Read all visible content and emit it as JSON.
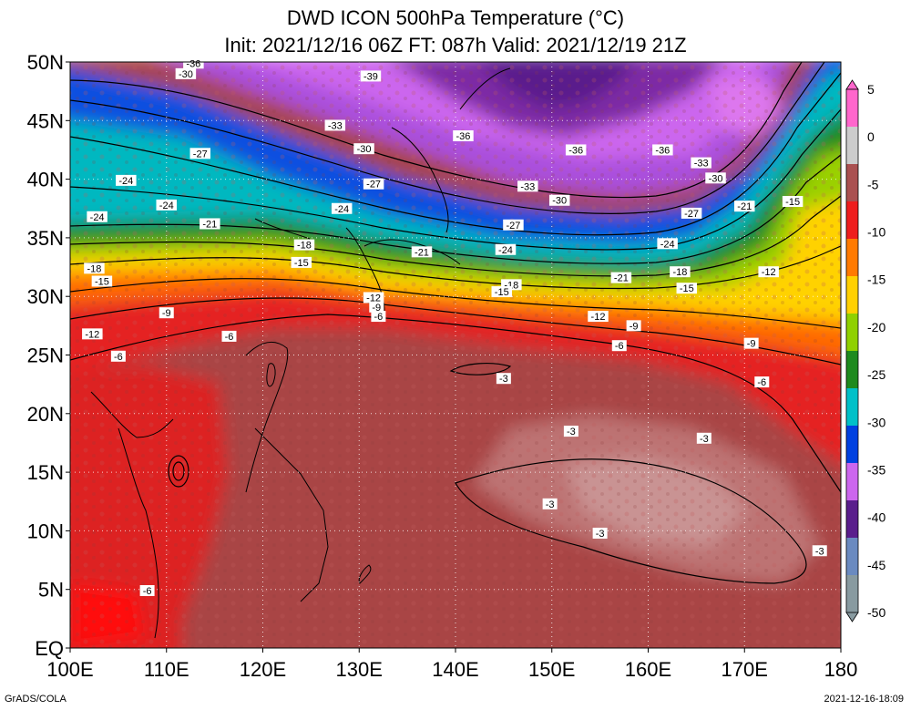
{
  "title": {
    "line1": "DWD ICON 500hPa Temperature (°C)",
    "line2": "Init: 2021/12/16 06Z  FT: 087h  Valid: 2021/12/19 21Z"
  },
  "axes": {
    "lat_labels": [
      "50N",
      "45N",
      "40N",
      "35N",
      "30N",
      "25N",
      "20N",
      "15N",
      "10N",
      "5N",
      "EQ"
    ],
    "lat_values": [
      50,
      45,
      40,
      35,
      30,
      25,
      20,
      15,
      10,
      5,
      0
    ],
    "lon_labels": [
      "100E",
      "110E",
      "120E",
      "130E",
      "140E",
      "150E",
      "160E",
      "170E",
      "180"
    ],
    "lon_values": [
      100,
      110,
      120,
      130,
      140,
      150,
      160,
      170,
      180
    ],
    "lon_range": [
      100,
      180
    ],
    "lat_range": [
      0,
      50
    ],
    "grid": "dotted"
  },
  "colorbar": {
    "labels": [
      "5",
      "0",
      "-5",
      "-10",
      "-15",
      "-20",
      "-25",
      "-30",
      "-35",
      "-40",
      "-45",
      "-50"
    ],
    "values": [
      5,
      0,
      -5,
      -10,
      -15,
      -20,
      -25,
      -30,
      -35,
      -40,
      -45,
      -50
    ],
    "colors": [
      "#ff66cc",
      "#cccccc",
      "#aa5050",
      "#ee1d1d",
      "#ff7a00",
      "#ffd000",
      "#8fd000",
      "#1e8a1e",
      "#00c0c8",
      "#0040e0",
      "#cc66ee",
      "#5a1e8c",
      "#6a8ac0",
      "#889aa0"
    ]
  },
  "contour_labels": [
    {
      "text": "-36",
      "lon": 112.8,
      "lat": 49.9
    },
    {
      "text": "-30",
      "lon": 112.0,
      "lat": 49.0
    },
    {
      "text": "-39",
      "lon": 131.2,
      "lat": 48.8
    },
    {
      "text": "-33",
      "lon": 127.5,
      "lat": 44.6
    },
    {
      "text": "-36",
      "lon": 140.8,
      "lat": 43.7
    },
    {
      "text": "-30",
      "lon": 130.5,
      "lat": 42.6
    },
    {
      "text": "-27",
      "lon": 113.5,
      "lat": 42.2
    },
    {
      "text": "-36",
      "lon": 152.5,
      "lat": 42.5
    },
    {
      "text": "-36",
      "lon": 161.5,
      "lat": 42.5
    },
    {
      "text": "-33",
      "lon": 165.5,
      "lat": 41.4
    },
    {
      "text": "-30",
      "lon": 167.0,
      "lat": 40.1
    },
    {
      "text": "-24",
      "lon": 105.8,
      "lat": 39.9
    },
    {
      "text": "-27",
      "lon": 131.5,
      "lat": 39.6
    },
    {
      "text": "-33",
      "lon": 147.5,
      "lat": 39.4
    },
    {
      "text": "-30",
      "lon": 150.8,
      "lat": 38.2
    },
    {
      "text": "-24",
      "lon": 110.0,
      "lat": 37.8
    },
    {
      "text": "-24",
      "lon": 128.2,
      "lat": 37.5
    },
    {
      "text": "-21",
      "lon": 170.0,
      "lat": 37.7
    },
    {
      "text": "-15",
      "lon": 175.0,
      "lat": 38.1
    },
    {
      "text": "-27",
      "lon": 164.5,
      "lat": 37.1
    },
    {
      "text": "-24",
      "lon": 102.8,
      "lat": 36.8
    },
    {
      "text": "-21",
      "lon": 114.5,
      "lat": 36.2
    },
    {
      "text": "-27",
      "lon": 146.0,
      "lat": 36.1
    },
    {
      "text": "-18",
      "lon": 124.3,
      "lat": 34.4
    },
    {
      "text": "-21",
      "lon": 136.5,
      "lat": 33.8
    },
    {
      "text": "-24",
      "lon": 145.2,
      "lat": 34.0
    },
    {
      "text": "-24",
      "lon": 162.0,
      "lat": 34.5
    },
    {
      "text": "-15",
      "lon": 124.0,
      "lat": 32.9
    },
    {
      "text": "-18",
      "lon": 102.5,
      "lat": 32.4
    },
    {
      "text": "-18",
      "lon": 163.3,
      "lat": 32.1
    },
    {
      "text": "-12",
      "lon": 172.5,
      "lat": 32.1
    },
    {
      "text": "-15",
      "lon": 103.3,
      "lat": 31.3
    },
    {
      "text": "-21",
      "lon": 157.2,
      "lat": 31.6
    },
    {
      "text": "-18",
      "lon": 145.8,
      "lat": 31.0
    },
    {
      "text": "-15",
      "lon": 144.8,
      "lat": 30.4
    },
    {
      "text": "-15",
      "lon": 164.0,
      "lat": 30.7
    },
    {
      "text": "-12",
      "lon": 131.5,
      "lat": 29.9
    },
    {
      "text": "-9",
      "lon": 131.8,
      "lat": 29.1
    },
    {
      "text": "-9",
      "lon": 110.0,
      "lat": 28.6
    },
    {
      "text": "-6",
      "lon": 132.0,
      "lat": 28.3
    },
    {
      "text": "-12",
      "lon": 154.8,
      "lat": 28.3
    },
    {
      "text": "-9",
      "lon": 158.5,
      "lat": 27.5
    },
    {
      "text": "-12",
      "lon": 102.3,
      "lat": 26.8
    },
    {
      "text": "-6",
      "lon": 116.5,
      "lat": 26.6
    },
    {
      "text": "-9",
      "lon": 170.7,
      "lat": 26.0
    },
    {
      "text": "-6",
      "lon": 157.0,
      "lat": 25.8
    },
    {
      "text": "-6",
      "lon": 105.0,
      "lat": 24.9
    },
    {
      "text": "-3",
      "lon": 145.0,
      "lat": 23.0
    },
    {
      "text": "-6",
      "lon": 171.8,
      "lat": 22.7
    },
    {
      "text": "-3",
      "lon": 152.0,
      "lat": 18.5
    },
    {
      "text": "-3",
      "lon": 165.8,
      "lat": 17.9
    },
    {
      "text": "-3",
      "lon": 149.8,
      "lat": 12.3
    },
    {
      "text": "-3",
      "lon": 155.0,
      "lat": 9.8
    },
    {
      "text": "-3",
      "lon": 177.8,
      "lat": 8.3
    },
    {
      "text": "-6",
      "lon": 108.0,
      "lat": 4.9
    }
  ],
  "footer": {
    "left": "GrADS/COLA",
    "right": "2021-12-16-18:09"
  }
}
